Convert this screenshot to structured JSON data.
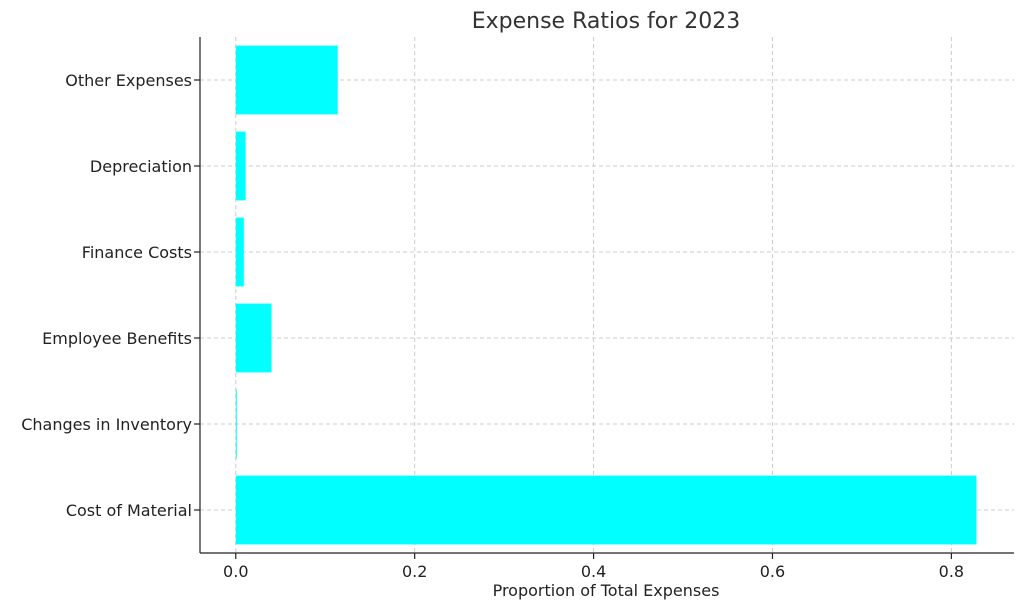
{
  "chart_data": {
    "type": "bar",
    "orientation": "horizontal",
    "title": "Expense Ratios for 2023",
    "xlabel": "Proportion of Total Expenses",
    "ylabel": "",
    "categories": [
      "Cost of Material",
      "Changes in Inventory",
      "Employee Benefits",
      "Finance Costs",
      "Depreciation",
      "Other Expenses"
    ],
    "values": [
      0.828,
      0.001,
      0.04,
      0.009,
      0.011,
      0.114
    ],
    "xlim": [
      -0.04,
      0.87
    ],
    "xticks": [
      0.0,
      0.2,
      0.4,
      0.6,
      0.8
    ],
    "xtick_labels": [
      "0.0",
      "0.2",
      "0.4",
      "0.6",
      "0.8"
    ],
    "grid": true,
    "bar_color": "#00ffff"
  }
}
